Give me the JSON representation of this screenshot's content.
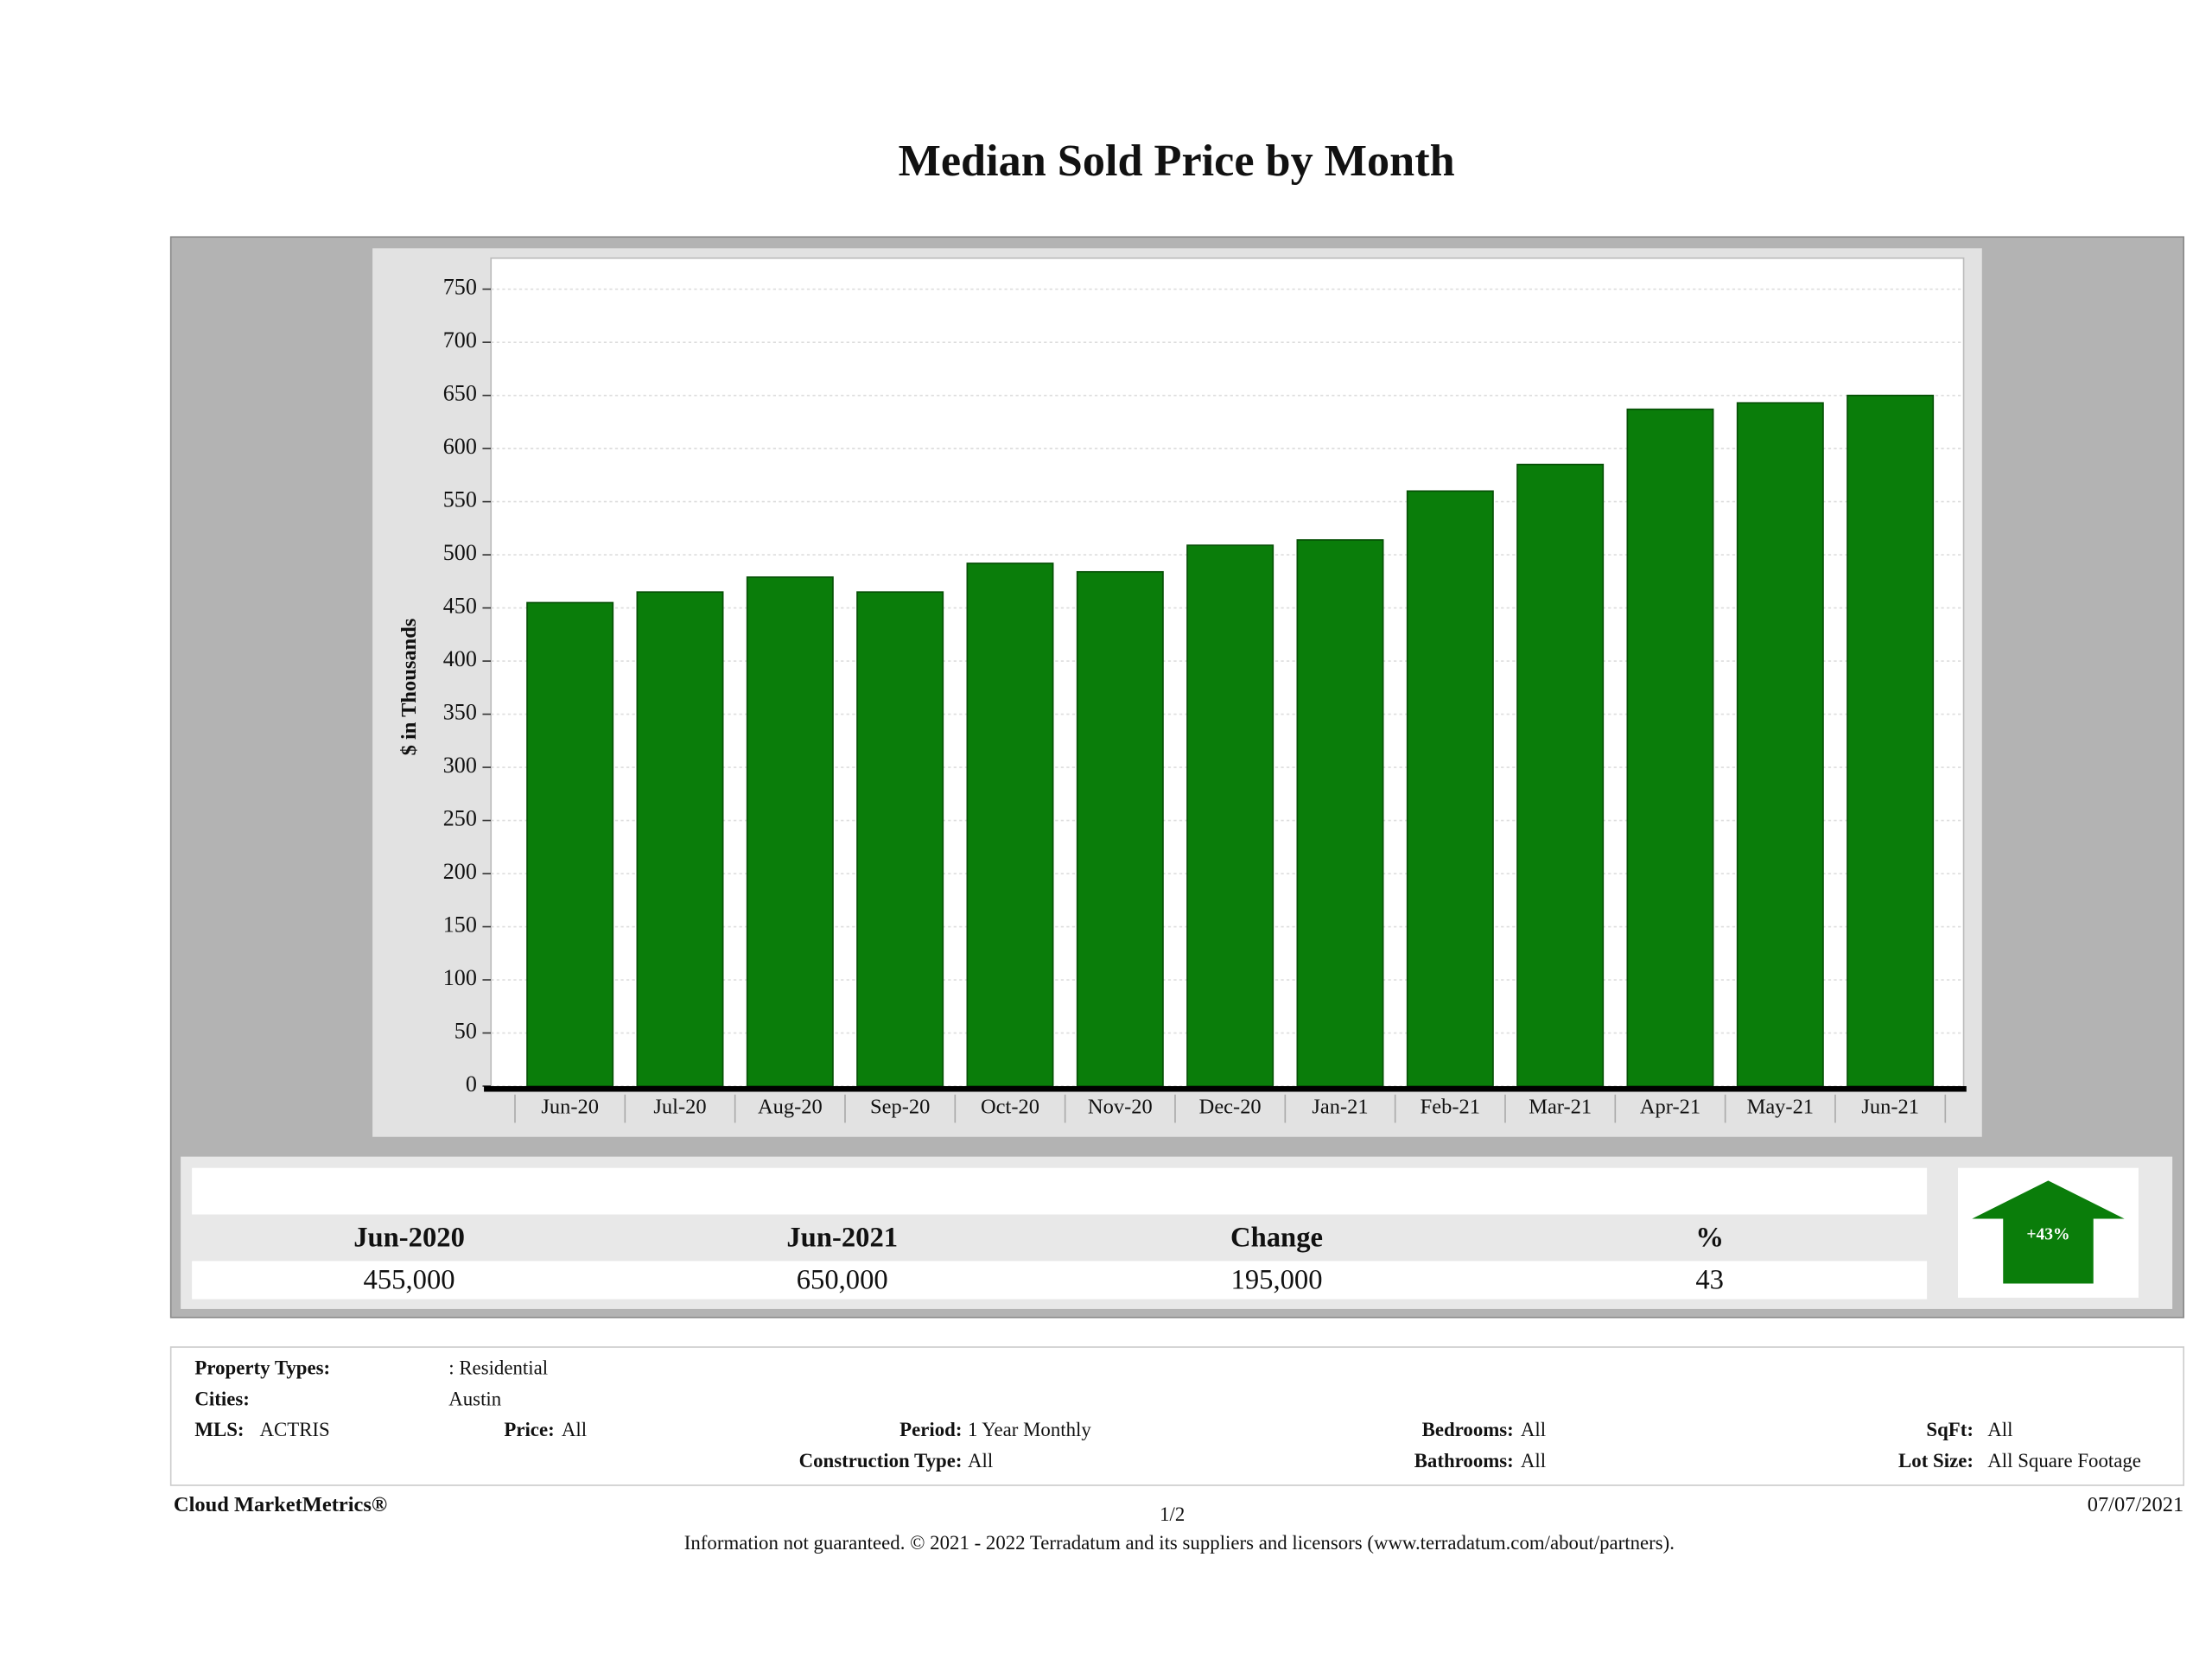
{
  "chart_data": {
    "type": "bar",
    "title": "Median Sold Price by Month",
    "y_label": "$ in Thousands",
    "categories": [
      "Jun-20",
      "Jul-20",
      "Aug-20",
      "Sep-20",
      "Oct-20",
      "Nov-20",
      "Dec-20",
      "Jan-21",
      "Feb-21",
      "Mar-21",
      "Apr-21",
      "May-21",
      "Jun-21"
    ],
    "values": [
      455,
      465,
      479,
      465,
      492,
      484,
      509,
      514,
      560,
      585,
      637,
      643,
      650
    ],
    "color": "#0a7d0a",
    "ylim": [
      0,
      750
    ],
    "yticks": [
      0,
      50,
      100,
      150,
      200,
      250,
      300,
      350,
      400,
      450,
      500,
      550,
      600,
      650,
      700,
      750
    ],
    "grid": true
  },
  "summary": {
    "headers": [
      "Jun-2020",
      "Jun-2021",
      "Change",
      "%"
    ],
    "values": [
      "455,000",
      "650,000",
      "195,000",
      "43"
    ],
    "badge": "+43%"
  },
  "filters": [
    [
      "Property Types:",
      ": Residential"
    ],
    [
      "Cities:",
      "Austin"
    ],
    [
      "MLS:",
      "ACTRIS"
    ],
    [
      "Price:",
      "All"
    ],
    [
      "Period:",
      "1 Year Monthly"
    ],
    [
      "Bedrooms:",
      "All"
    ],
    [
      "SqFt:",
      "All"
    ],
    [
      "Construction Type:",
      "All"
    ],
    [
      "Bathrooms:",
      "All"
    ],
    [
      "Lot Size:",
      "All Square Footage"
    ]
  ],
  "footer": {
    "brand": "Cloud MarketMetrics®",
    "page": "1/2",
    "date": "07/07/2021",
    "disclaimer": "Information not guaranteed. © 2021 - 2022 Terradatum and its suppliers and licensors (www.terradatum.com/about/partners)."
  }
}
